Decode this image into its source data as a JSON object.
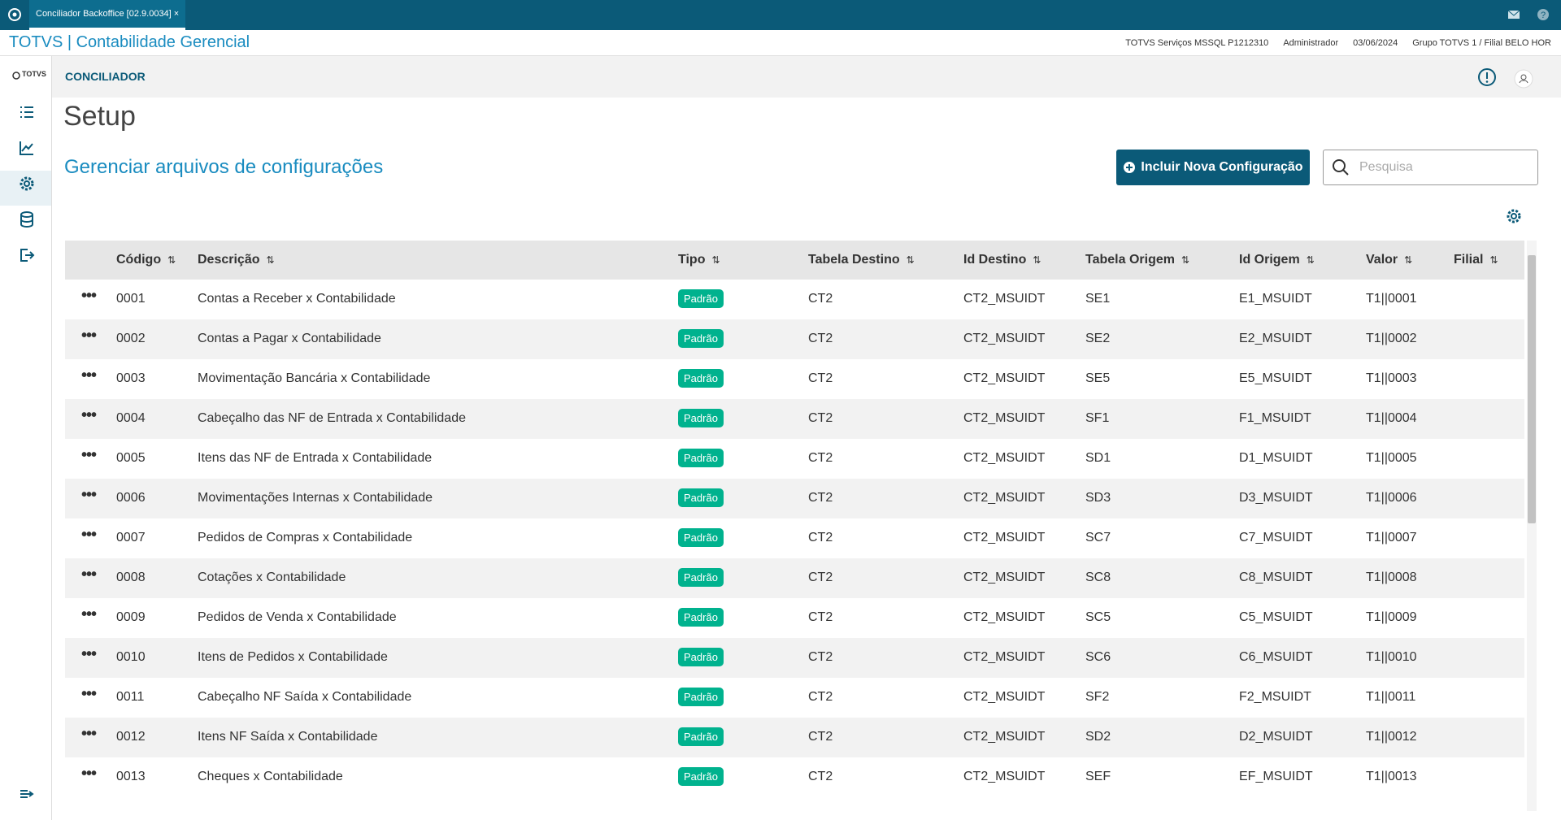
{
  "tab": {
    "title": "Conciliador Backoffice [02.9.0034]"
  },
  "header": {
    "app": "TOTVS | Contabilidade Gerencial",
    "info": [
      "TOTVS Serviços MSSQL P1212310",
      "Administrador",
      "03/06/2024",
      "Grupo TOTVS 1 / Filial BELO HOR"
    ]
  },
  "sidebar": {
    "logo": "TOTVS"
  },
  "page": {
    "section": "CONCILIADOR",
    "title": "Setup",
    "subtitle": "Gerenciar arquivos de configurações",
    "button": "Incluir Nova Configuração",
    "search_placeholder": "Pesquisa"
  },
  "table": {
    "columns": [
      "Código",
      "Descrição",
      "Tipo",
      "Tabela Destino",
      "Id Destino",
      "Tabela Origem",
      "Id Origem",
      "Valor",
      "Filial"
    ],
    "rows": [
      [
        "0001",
        "Contas a Receber x Contabilidade",
        "Padrão",
        "CT2",
        "CT2_MSUIDT",
        "SE1",
        "E1_MSUIDT",
        "T1||0001"
      ],
      [
        "0002",
        "Contas a Pagar x Contabilidade",
        "Padrão",
        "CT2",
        "CT2_MSUIDT",
        "SE2",
        "E2_MSUIDT",
        "T1||0002"
      ],
      [
        "0003",
        "Movimentação Bancária x Contabilidade",
        "Padrão",
        "CT2",
        "CT2_MSUIDT",
        "SE5",
        "E5_MSUIDT",
        "T1||0003"
      ],
      [
        "0004",
        "Cabeçalho das NF de Entrada x Contabilidade",
        "Padrão",
        "CT2",
        "CT2_MSUIDT",
        "SF1",
        "F1_MSUIDT",
        "T1||0004"
      ],
      [
        "0005",
        "Itens das NF de Entrada x Contabilidade",
        "Padrão",
        "CT2",
        "CT2_MSUIDT",
        "SD1",
        "D1_MSUIDT",
        "T1||0005"
      ],
      [
        "0006",
        "Movimentações Internas x Contabilidade",
        "Padrão",
        "CT2",
        "CT2_MSUIDT",
        "SD3",
        "D3_MSUIDT",
        "T1||0006"
      ],
      [
        "0007",
        "Pedidos de Compras x Contabilidade",
        "Padrão",
        "CT2",
        "CT2_MSUIDT",
        "SC7",
        "C7_MSUIDT",
        "T1||0007"
      ],
      [
        "0008",
        "Cotações x Contabilidade",
        "Padrão",
        "CT2",
        "CT2_MSUIDT",
        "SC8",
        "C8_MSUIDT",
        "T1||0008"
      ],
      [
        "0009",
        "Pedidos de Venda x Contabilidade",
        "Padrão",
        "CT2",
        "CT2_MSUIDT",
        "SC5",
        "C5_MSUIDT",
        "T1||0009"
      ],
      [
        "0010",
        "Itens de Pedidos x Contabilidade",
        "Padrão",
        "CT2",
        "CT2_MSUIDT",
        "SC6",
        "C6_MSUIDT",
        "T1||0010"
      ],
      [
        "0011",
        "Cabeçalho NF Saída x Contabilidade",
        "Padrão",
        "CT2",
        "CT2_MSUIDT",
        "SF2",
        "F2_MSUIDT",
        "T1||0011"
      ],
      [
        "0012",
        "Itens NF Saída x Contabilidade",
        "Padrão",
        "CT2",
        "CT2_MSUIDT",
        "SD2",
        "D2_MSUIDT",
        "T1||0012"
      ],
      [
        "0013",
        "Cheques x Contabilidade",
        "Padrão",
        "CT2",
        "CT2_MSUIDT",
        "SEF",
        "EF_MSUIDT",
        "T1||0013"
      ]
    ]
  }
}
